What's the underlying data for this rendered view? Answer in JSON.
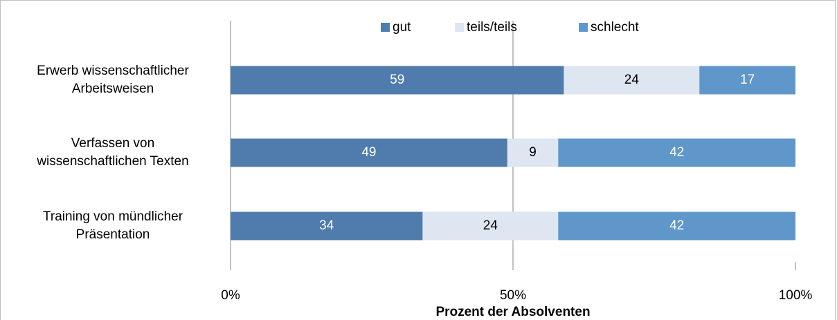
{
  "chart_data": {
    "type": "stacked_barh",
    "x_label": "Prozent der Absolventen",
    "categories": [
      "Erwerb wissenschaftlicher\nArbeitsweisen",
      "Verfassen von\nwissenschaftlichen Texten",
      "Training von mündlicher\nPräsentation"
    ],
    "series": [
      {
        "name": "gut",
        "color": "#4f7cad",
        "values": [
          59,
          49,
          34
        ]
      },
      {
        "name": "teils/teils",
        "color": "#dee6f1",
        "values": [
          24,
          9,
          24
        ]
      },
      {
        "name": "schlecht",
        "color": "#6097ca",
        "values": [
          17,
          42,
          42
        ]
      }
    ],
    "xlim": [
      0,
      100
    ],
    "xticks": [
      {
        "value": 0,
        "label": "0%"
      },
      {
        "value": 50,
        "label": "50%"
      },
      {
        "value": 100,
        "label": "100%"
      }
    ],
    "grid": true,
    "legend": "top"
  }
}
